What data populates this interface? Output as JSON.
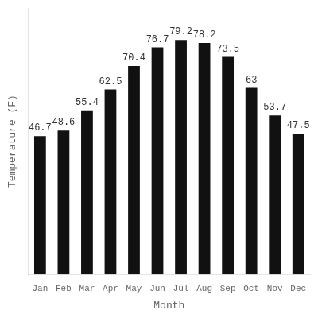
{
  "chart_data": {
    "type": "bar",
    "categories": [
      "Jan",
      "Feb",
      "Mar",
      "Apr",
      "May",
      "Jun",
      "Jul",
      "Aug",
      "Sep",
      "Oct",
      "Nov",
      "Dec"
    ],
    "values": [
      46.7,
      48.6,
      55.4,
      62.5,
      70.4,
      76.7,
      79.2,
      78.2,
      73.5,
      63.0,
      53.7,
      47.5
    ],
    "color": "#111111",
    "xlabel": "Month",
    "ylabel": "Temperature (F)",
    "ylim": [
      0,
      90
    ],
    "grid": false,
    "data_labels": true,
    "tick_labels": "x"
  }
}
